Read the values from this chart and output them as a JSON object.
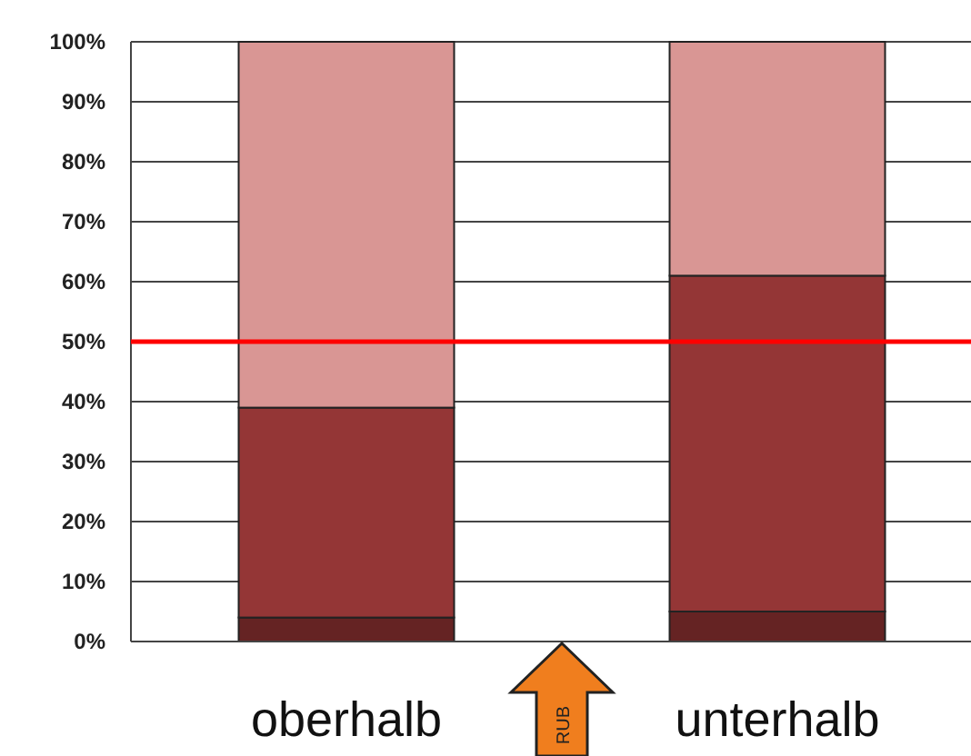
{
  "chart_data": {
    "type": "bar",
    "stacked": true,
    "categories": [
      "oberhalb",
      "unterhalb"
    ],
    "series": [
      {
        "color": "#652323",
        "values": [
          4,
          5
        ]
      },
      {
        "color": "#943636",
        "values": [
          35,
          56
        ]
      },
      {
        "color": "#d99694",
        "values": [
          61,
          39
        ]
      }
    ],
    "ylim": [
      0,
      100
    ],
    "yticks": [
      {
        "value": 0,
        "label": "0%"
      },
      {
        "value": 10,
        "label": "10%"
      },
      {
        "value": 20,
        "label": "20%"
      },
      {
        "value": 30,
        "label": "30%"
      },
      {
        "value": 40,
        "label": "40%"
      },
      {
        "value": 50,
        "label": "50%"
      },
      {
        "value": 60,
        "label": "60%"
      },
      {
        "value": 70,
        "label": "70%"
      },
      {
        "value": 80,
        "label": "80%"
      },
      {
        "value": 90,
        "label": "90%"
      },
      {
        "value": 100,
        "label": "100%"
      }
    ],
    "grid": "y",
    "ref_lines": [
      {
        "axis": "y",
        "value": 50,
        "color": "#ff0000"
      }
    ],
    "annotations": [
      "RUB"
    ]
  }
}
